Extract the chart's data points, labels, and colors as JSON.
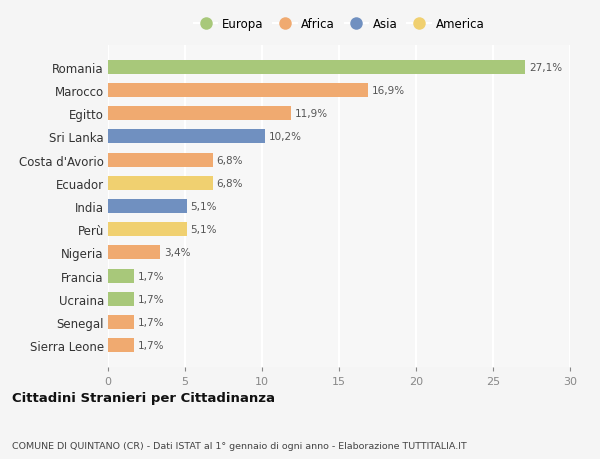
{
  "countries": [
    "Romania",
    "Marocco",
    "Egitto",
    "Sri Lanka",
    "Costa d'Avorio",
    "Ecuador",
    "India",
    "Perù",
    "Nigeria",
    "Francia",
    "Ucraina",
    "Senegal",
    "Sierra Leone"
  ],
  "values": [
    27.1,
    16.9,
    11.9,
    10.2,
    6.8,
    6.8,
    5.1,
    5.1,
    3.4,
    1.7,
    1.7,
    1.7,
    1.7
  ],
  "continents": [
    "Europa",
    "Africa",
    "Africa",
    "Asia",
    "Africa",
    "America",
    "Asia",
    "America",
    "Africa",
    "Europa",
    "Europa",
    "Africa",
    "Africa"
  ],
  "colors": {
    "Europa": "#a8c87a",
    "Africa": "#f0aa70",
    "Asia": "#7090c0",
    "America": "#f0d070"
  },
  "legend_order": [
    "Europa",
    "Africa",
    "Asia",
    "America"
  ],
  "xlim": [
    0,
    30
  ],
  "xticks": [
    0,
    5,
    10,
    15,
    20,
    25,
    30
  ],
  "title": "Cittadini Stranieri per Cittadinanza",
  "subtitle": "COMUNE DI QUINTANO (CR) - Dati ISTAT al 1° gennaio di ogni anno - Elaborazione TUTTITALIA.IT",
  "bg_color": "#f5f5f5",
  "plot_bg": "#f7f7f7",
  "grid_color": "#ffffff",
  "bar_height": 0.6
}
